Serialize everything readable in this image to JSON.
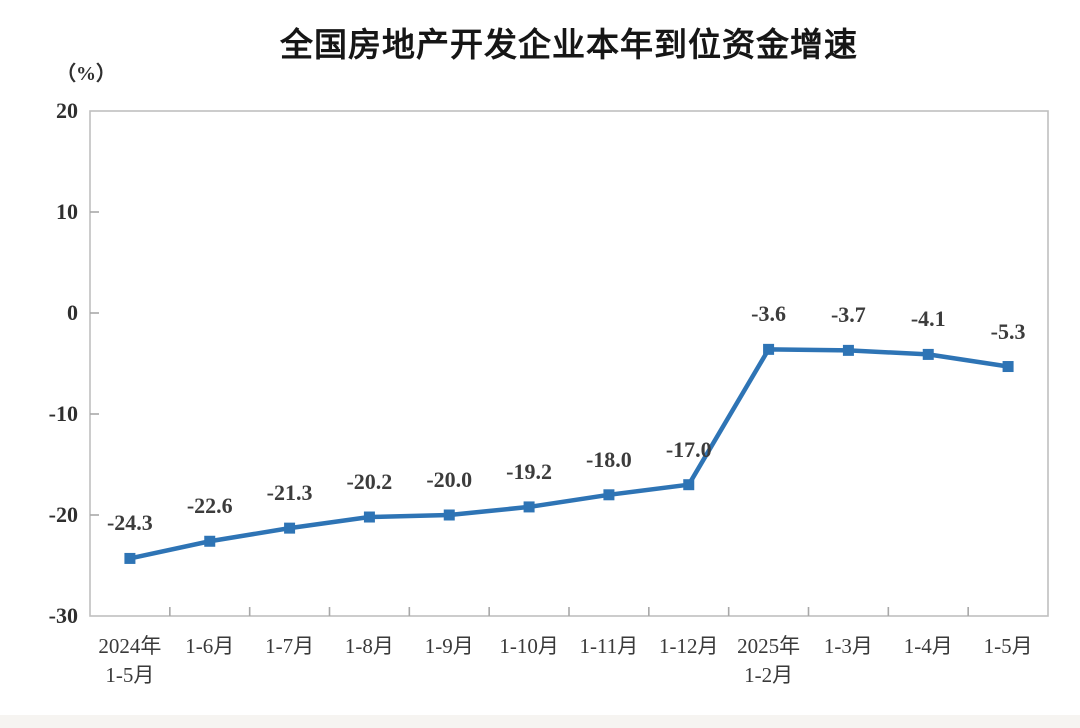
{
  "page": {
    "background_color": "#ffffff",
    "footer_strip_color": "#f6f4f1"
  },
  "chart_data": {
    "type": "line",
    "title": "全国房地产开发企业本年到位资金增速",
    "unit_label": "（%）",
    "categories": [
      "2024年\n1-5月",
      "1-6月",
      "1-7月",
      "1-8月",
      "1-9月",
      "1-10月",
      "1-11月",
      "1-12月",
      "2025年\n1-2月",
      "1-3月",
      "1-4月",
      "1-5月"
    ],
    "values": [
      -24.3,
      -22.6,
      -21.3,
      -20.2,
      -20.0,
      -19.2,
      -18.0,
      -17.0,
      -3.6,
      -3.7,
      -4.1,
      -5.3
    ],
    "data_labels": [
      "-24.3",
      "-22.6",
      "-21.3",
      "-20.2",
      "-20.0",
      "-19.2",
      "-18.0",
      "-17.0",
      "-3.6",
      "-3.7",
      "-4.1",
      "-5.3"
    ],
    "xlabel": "",
    "ylabel": "（%）",
    "ylim": [
      -30,
      20
    ],
    "yticks": [
      20,
      10,
      0,
      -10,
      -20,
      -30
    ],
    "grid": false,
    "legend": "none",
    "marker": "square",
    "line_color": "#2E74B5",
    "axis_color": "#bfbfbf",
    "tick_color": "#a8a8a8",
    "title_color": "#161616",
    "tick_label_color": "#2f2f2f",
    "category_label_color": "#3a3a3a",
    "data_label_color": "#3c3c3c"
  }
}
